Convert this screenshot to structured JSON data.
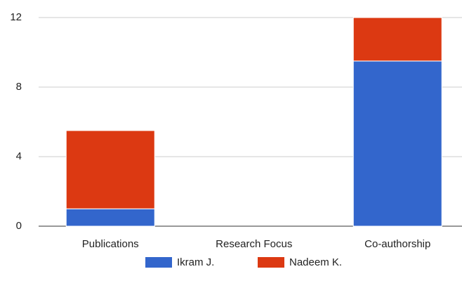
{
  "chart_data": {
    "type": "bar",
    "stacked": true,
    "categories": [
      "Publications",
      "Research Focus",
      "Co-authorship"
    ],
    "series": [
      {
        "name": "Ikram J.",
        "color": "#3366cc",
        "values": [
          1,
          0,
          9.5
        ]
      },
      {
        "name": "Nadeem K.",
        "color": "#dc3912",
        "values": [
          4.5,
          0,
          2.5
        ]
      }
    ],
    "ylim": [
      0,
      12
    ],
    "yticks": [
      0,
      4,
      8,
      12
    ],
    "grid": true,
    "legend": "bottom"
  }
}
